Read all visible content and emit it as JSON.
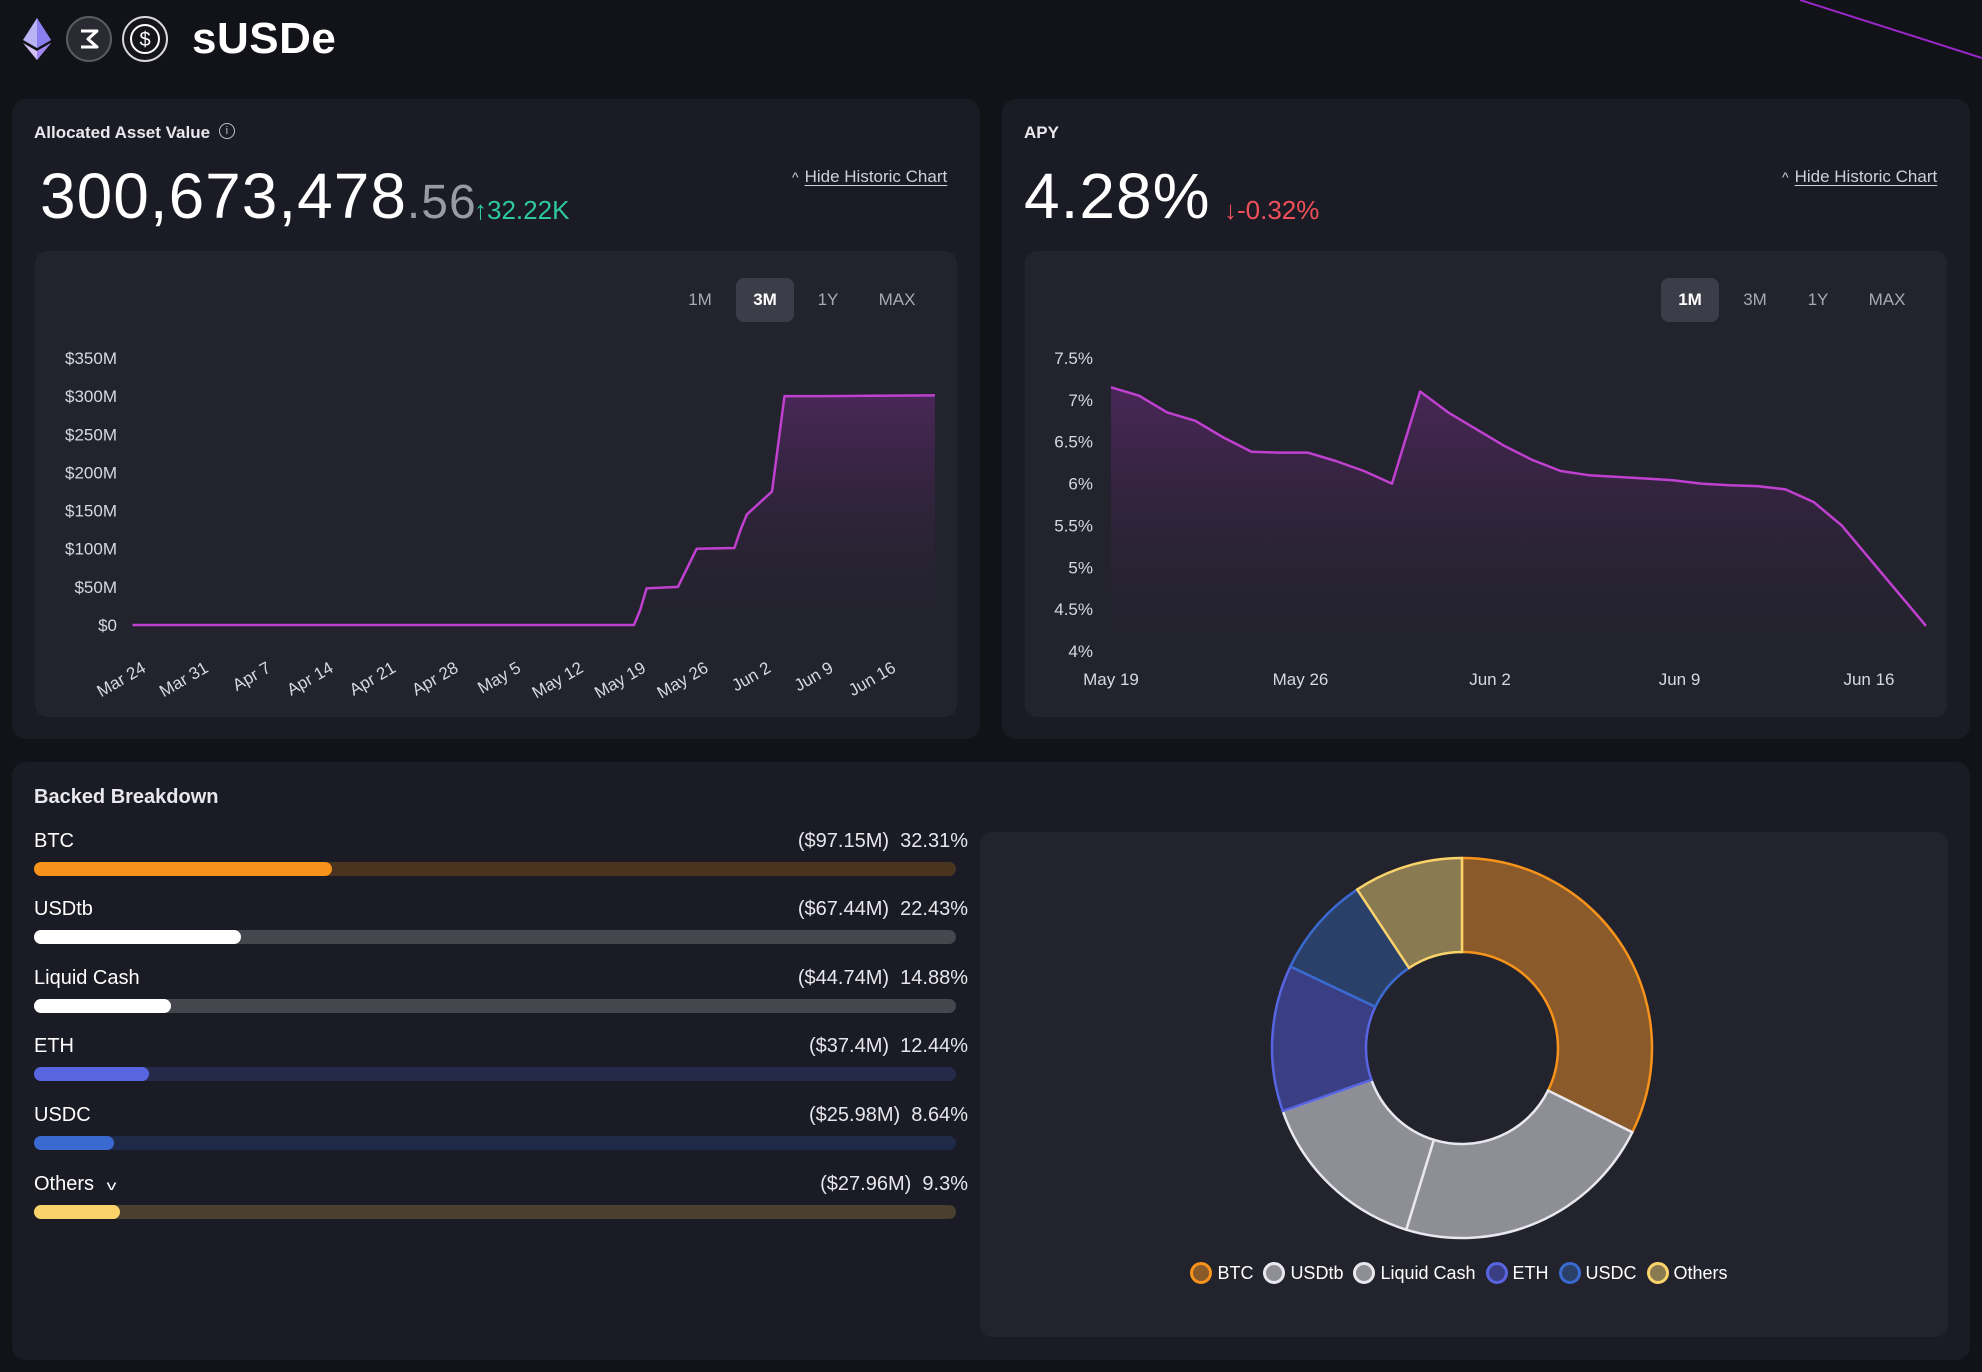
{
  "header": {
    "title": "sUSDe",
    "icons": [
      "ethereum-icon",
      "ethena-icon",
      "dollar-icon"
    ]
  },
  "allocated": {
    "label": "Allocated Asset Value",
    "value_int": "300,673,478",
    "value_dec": ".56",
    "delta": "↑32.22K",
    "hide_link": "Hide Historic Chart",
    "tabs": [
      "1M",
      "3M",
      "1Y",
      "MAX"
    ],
    "active_tab": "3M"
  },
  "apy": {
    "label": "APY",
    "value": "4.28%",
    "delta": "↓-0.32%",
    "hide_link": "Hide Historic Chart",
    "tabs": [
      "1M",
      "3M",
      "1Y",
      "MAX"
    ],
    "active_tab": "1M"
  },
  "breakdown": {
    "title": "Backed Breakdown",
    "rows": [
      {
        "name": "BTC",
        "amount": "($97.15M)",
        "pct": "32.31%",
        "fraction": 0.3231,
        "color": "#f7931a",
        "track": "#4a3420"
      },
      {
        "name": "USDtb",
        "amount": "($67.44M)",
        "pct": "22.43%",
        "fraction": 0.2243,
        "color": "#ffffff",
        "track": "#45464e"
      },
      {
        "name": "Liquid Cash",
        "amount": "($44.74M)",
        "pct": "14.88%",
        "fraction": 0.1488,
        "color": "#ffffff",
        "track": "#45464e"
      },
      {
        "name": "ETH",
        "amount": "($37.4M)",
        "pct": "12.44%",
        "fraction": 0.1244,
        "color": "#5865e0",
        "track": "#262a4a"
      },
      {
        "name": "USDC",
        "amount": "($25.98M)",
        "pct": "8.64%",
        "fraction": 0.0864,
        "color": "#3a6ad0",
        "track": "#1e2a48"
      },
      {
        "name": "Others",
        "amount": "($27.96M)",
        "pct": "9.3%",
        "fraction": 0.093,
        "color": "#fad36a",
        "track": "#4a4030"
      }
    ],
    "legend": [
      {
        "name": "BTC",
        "fill": "#8a5a2a",
        "stroke": "#f7931a"
      },
      {
        "name": "USDtb",
        "fill": "#8e8e96",
        "stroke": "#e8e8ee"
      },
      {
        "name": "Liquid Cash",
        "fill": "#8e8e96",
        "stroke": "#e8e8ee"
      },
      {
        "name": "ETH",
        "fill": "#3a3f84",
        "stroke": "#5865e0"
      },
      {
        "name": "USDC",
        "fill": "#2a4068",
        "stroke": "#3a6ad0"
      },
      {
        "name": "Others",
        "fill": "#8a7a52",
        "stroke": "#fad36a"
      }
    ]
  },
  "chart_data": [
    {
      "type": "area",
      "title": "",
      "x": [
        "Mar 24",
        "Mar 31",
        "Apr 7",
        "Apr 14",
        "Apr 21",
        "Apr 28",
        "May 5",
        "May 12",
        "May 19",
        "May 26",
        "Jun 2",
        "Jun 9",
        "Jun 16"
      ],
      "yticks": [
        "$0",
        "$50M",
        "$100M",
        "$150M",
        "$200M",
        "$250M",
        "$300M",
        "$350M"
      ],
      "ylim": [
        0,
        350
      ],
      "xlim": [
        0,
        12.6
      ],
      "series": [
        {
          "x": [
            -0.2,
            7.8,
            7.9,
            8.0,
            8.5,
            8.65,
            8.8,
            9.4,
            9.5,
            9.6,
            10.0,
            10.2,
            10.4,
            10.5,
            10.6,
            10.8,
            12.6
          ],
          "values": [
            0,
            0,
            20,
            48,
            50,
            75,
            100,
            101,
            125,
            145,
            175,
            300,
            300,
            300,
            300,
            300,
            301
          ]
        }
      ],
      "color": "#c040d0"
    },
    {
      "type": "area",
      "title": "",
      "x": [
        "May 19",
        "May 26",
        "Jun 2",
        "Jun 9",
        "Jun 16"
      ],
      "yticks": [
        "4%",
        "4.5%",
        "5%",
        "5.5%",
        "6%",
        "6.5%",
        "7%",
        "7.5%"
      ],
      "ylim": [
        4,
        7.5
      ],
      "xlim": [
        0,
        29
      ],
      "series": [
        {
          "x": [
            0,
            1,
            2,
            3,
            4,
            5,
            6,
            7,
            8,
            9,
            10,
            11,
            12,
            13,
            14,
            15,
            16,
            17,
            18,
            19,
            20,
            21,
            22,
            23,
            24,
            25,
            26,
            27,
            28,
            29
          ],
          "values": [
            7.15,
            7.05,
            6.85,
            6.75,
            6.55,
            6.38,
            6.37,
            6.37,
            6.27,
            6.15,
            6.0,
            7.1,
            6.85,
            6.65,
            6.45,
            6.28,
            6.15,
            6.1,
            6.08,
            6.06,
            6.04,
            6.0,
            5.98,
            5.97,
            5.93,
            5.78,
            5.5,
            5.1,
            4.7,
            4.3
          ]
        }
      ],
      "color": "#c040d0"
    },
    {
      "type": "pie",
      "title": "",
      "categories": [
        "BTC",
        "USDtb",
        "Liquid Cash",
        "ETH",
        "USDC",
        "Others"
      ],
      "values": [
        32.31,
        22.43,
        14.88,
        12.44,
        8.64,
        9.3
      ],
      "legend": "bottom"
    }
  ]
}
